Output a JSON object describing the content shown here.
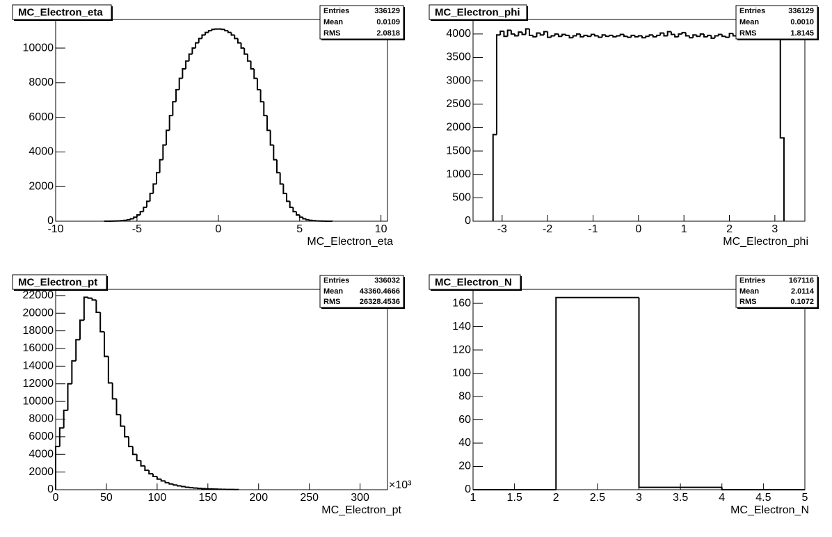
{
  "chart_data": [
    {
      "type": "histogram",
      "title": "MC_Electron_eta",
      "x_label": "MC_Electron_eta",
      "stats": [
        {
          "label": "Entries",
          "value": "336129"
        },
        {
          "label": "Mean",
          "value": "0.0109"
        },
        {
          "label": "RMS",
          "value": "2.0818"
        }
      ],
      "bins": [
        -7,
        -6.8,
        -6.6,
        -6.4,
        -6.2,
        -6,
        -5.8,
        -5.6,
        -5.4,
        -5.2,
        -5,
        -4.8,
        -4.6,
        -4.4,
        -4.2,
        -4,
        -3.8,
        -3.6,
        -3.4,
        -3.2,
        -3,
        -2.8,
        -2.6,
        -2.4,
        -2.2,
        -2,
        -1.8,
        -1.6,
        -1.4,
        -1.2,
        -1,
        -0.8,
        -0.6,
        -0.4,
        -0.2,
        0,
        0.2,
        0.4,
        0.6,
        0.8,
        1,
        1.2,
        1.4,
        1.6,
        1.8,
        2,
        2.2,
        2.4,
        2.6,
        2.8,
        3,
        3.2,
        3.4,
        3.6,
        3.8,
        4,
        4.2,
        4.4,
        4.6,
        4.8,
        5,
        5.2,
        5.4,
        5.6,
        5.8,
        6,
        6.2,
        6.4,
        6.6,
        6.8,
        7
      ],
      "values": [
        1,
        2,
        4,
        8,
        15,
        28,
        50,
        85,
        140,
        230,
        360,
        550,
        800,
        1150,
        1600,
        2150,
        2800,
        3550,
        4400,
        5250,
        6100,
        6900,
        7600,
        8250,
        8800,
        9250,
        9650,
        10000,
        10300,
        10550,
        10750,
        10900,
        11000,
        11080,
        11100,
        11100,
        11080,
        11000,
        10900,
        10750,
        10550,
        10300,
        10000,
        9650,
        9250,
        8800,
        8250,
        7600,
        6900,
        6100,
        5250,
        4400,
        3550,
        2800,
        2150,
        1600,
        1150,
        800,
        550,
        360,
        230,
        140,
        85,
        50,
        28,
        15,
        8,
        4,
        2,
        1
      ],
      "color": "#000000",
      "xlim": [
        -10,
        10.4
      ],
      "ylim": [
        0,
        11650
      ],
      "xticks": [
        -10,
        -5,
        0,
        5,
        10
      ],
      "yticks": [
        0,
        2000,
        4000,
        6000,
        8000,
        10000
      ],
      "grid": false
    },
    {
      "type": "histogram",
      "title": "MC_Electron_phi",
      "x_label": "MC_Electron_phi",
      "stats": [
        {
          "label": "Entries",
          "value": "336129"
        },
        {
          "label": "Mean",
          "value": "0.0010"
        },
        {
          "label": "RMS",
          "value": "1.8145"
        }
      ],
      "bins": [
        -3.2,
        -3.12,
        -3.04,
        -2.96,
        -2.88,
        -2.8,
        -2.72,
        -2.64,
        -2.56,
        -2.48,
        -2.4,
        -2.32,
        -2.24,
        -2.16,
        -2.08,
        -2,
        -1.92,
        -1.84,
        -1.76,
        -1.68,
        -1.6,
        -1.52,
        -1.44,
        -1.36,
        -1.28,
        -1.2,
        -1.12,
        -1.04,
        -0.96,
        -0.88,
        -0.8,
        -0.72,
        -0.64,
        -0.56,
        -0.48,
        -0.4,
        -0.32,
        -0.24,
        -0.16,
        -0.08,
        0,
        0.08,
        0.16,
        0.24,
        0.32,
        0.4,
        0.48,
        0.56,
        0.64,
        0.72,
        0.8,
        0.88,
        0.96,
        1.04,
        1.12,
        1.2,
        1.28,
        1.36,
        1.44,
        1.52,
        1.6,
        1.68,
        1.76,
        1.84,
        1.92,
        2,
        2.08,
        2.16,
        2.24,
        2.32,
        2.4,
        2.48,
        2.56,
        2.64,
        2.72,
        2.8,
        2.88,
        2.96,
        3.04,
        3.12,
        3.2
      ],
      "values": [
        1850,
        3980,
        4060,
        3950,
        4080,
        4000,
        3960,
        4040,
        3990,
        4110,
        3970,
        3940,
        4020,
        3980,
        4050,
        3930,
        3960,
        4000,
        3950,
        3990,
        3970,
        3920,
        3960,
        4000,
        3940,
        3970,
        3950,
        3990,
        3960,
        3930,
        3980,
        3950,
        3970,
        3940,
        3960,
        3990,
        3950,
        3930,
        3970,
        3940,
        3960,
        3920,
        3950,
        3980,
        3940,
        3970,
        4020,
        3960,
        4050,
        3990,
        3940,
        4000,
        4030,
        3960,
        3920,
        3980,
        3950,
        4000,
        3940,
        3970,
        3910,
        3960,
        3990,
        3950,
        3930,
        4010,
        3960,
        3940,
        3980,
        3950,
        3920,
        3960,
        3930,
        3900,
        3950,
        3940,
        3910,
        3960,
        3890,
        1780
      ],
      "color": "#000000",
      "xlim": [
        -3.64,
        3.66
      ],
      "ylim": [
        0,
        4310
      ],
      "xticks": [
        -3,
        -2,
        -1,
        0,
        1,
        2,
        3
      ],
      "yticks": [
        0,
        500,
        1000,
        1500,
        2000,
        2500,
        3000,
        3500,
        4000
      ],
      "grid": false
    },
    {
      "type": "histogram",
      "title": "MC_Electron_pt",
      "x_label": "MC_Electron_pt",
      "x_exponent_label": "×10³",
      "stats": [
        {
          "label": "Entries",
          "value": "336032"
        },
        {
          "label": "Mean",
          "value": "43360.4666"
        },
        {
          "label": "RMS",
          "value": "26328.4536"
        }
      ],
      "bins": [
        0,
        4,
        8,
        12,
        16,
        20,
        24,
        28,
        32,
        36,
        40,
        44,
        48,
        52,
        56,
        60,
        64,
        68,
        72,
        76,
        80,
        84,
        88,
        92,
        96,
        100,
        104,
        108,
        112,
        116,
        120,
        124,
        128,
        132,
        136,
        140,
        144,
        148,
        152,
        156,
        160,
        164,
        168,
        172,
        176,
        180
      ],
      "values": [
        4900,
        7000,
        9000,
        12000,
        14600,
        17000,
        19200,
        21800,
        21700,
        21500,
        20100,
        17900,
        15100,
        12100,
        10300,
        8500,
        7200,
        6000,
        4900,
        4000,
        3300,
        2700,
        2200,
        1800,
        1500,
        1200,
        1000,
        800,
        650,
        530,
        430,
        350,
        280,
        230,
        190,
        150,
        120,
        100,
        80,
        65,
        50,
        40,
        32,
        26,
        20
      ],
      "color": "#000000",
      "xlim": [
        0,
        327
      ],
      "ylim": [
        0,
        22700
      ],
      "xticks": [
        0,
        50,
        100,
        150,
        200,
        250,
        300
      ],
      "yticks": [
        0,
        2000,
        4000,
        6000,
        8000,
        10000,
        12000,
        14000,
        16000,
        18000,
        20000,
        22000
      ],
      "grid": false
    },
    {
      "type": "histogram",
      "title": "MC_Electron_N",
      "x_label": "MC_Electron_N",
      "stats": [
        {
          "label": "Entries",
          "value": "167116"
        },
        {
          "label": "Mean",
          "value": "2.0114"
        },
        {
          "label": "RMS",
          "value": "0.1072"
        }
      ],
      "bins": [
        1,
        2,
        3,
        4,
        5
      ],
      "values": [
        0,
        165,
        2,
        0
      ],
      "color": "#000000",
      "xlim": [
        1,
        5
      ],
      "ylim": [
        0,
        172
      ],
      "xticks": [
        1,
        1.5,
        2,
        2.5,
        3,
        3.5,
        4,
        4.5,
        5
      ],
      "yticks": [
        0,
        20,
        40,
        60,
        80,
        100,
        120,
        140,
        160
      ],
      "grid": false
    }
  ]
}
